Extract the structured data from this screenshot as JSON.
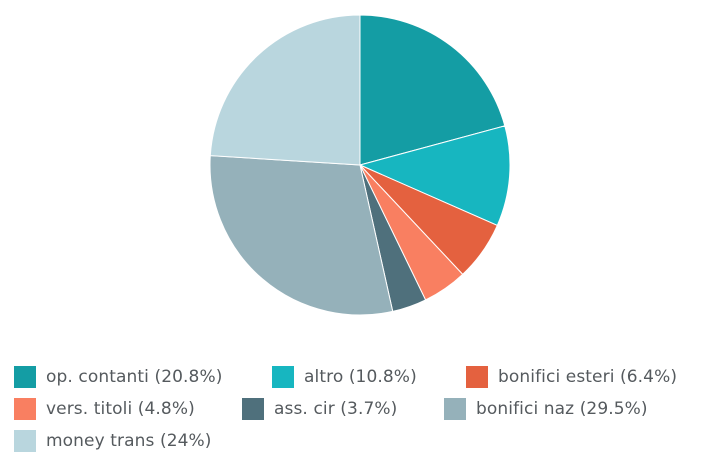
{
  "chart_data": {
    "type": "pie",
    "title": "",
    "legend_position": "bottom",
    "slices": [
      {
        "label": "op. contanti (20.8%)",
        "value": 20.8,
        "color": "#149da4"
      },
      {
        "label": "altro (10.8%)",
        "value": 10.8,
        "color": "#17b6c0"
      },
      {
        "label": "bonifici esteri (6.4%)",
        "value": 6.4,
        "color": "#e4613f"
      },
      {
        "label": "vers. titoli (4.8%)",
        "value": 4.8,
        "color": "#f97f61"
      },
      {
        "label": "ass. cir (3.7%)",
        "value": 3.7,
        "color": "#4f707c"
      },
      {
        "label": "bonifici naz (29.5%)",
        "value": 29.5,
        "color": "#95b1ba"
      },
      {
        "label": "money trans (24%)",
        "value": 24,
        "color": "#b9d6de"
      }
    ]
  }
}
